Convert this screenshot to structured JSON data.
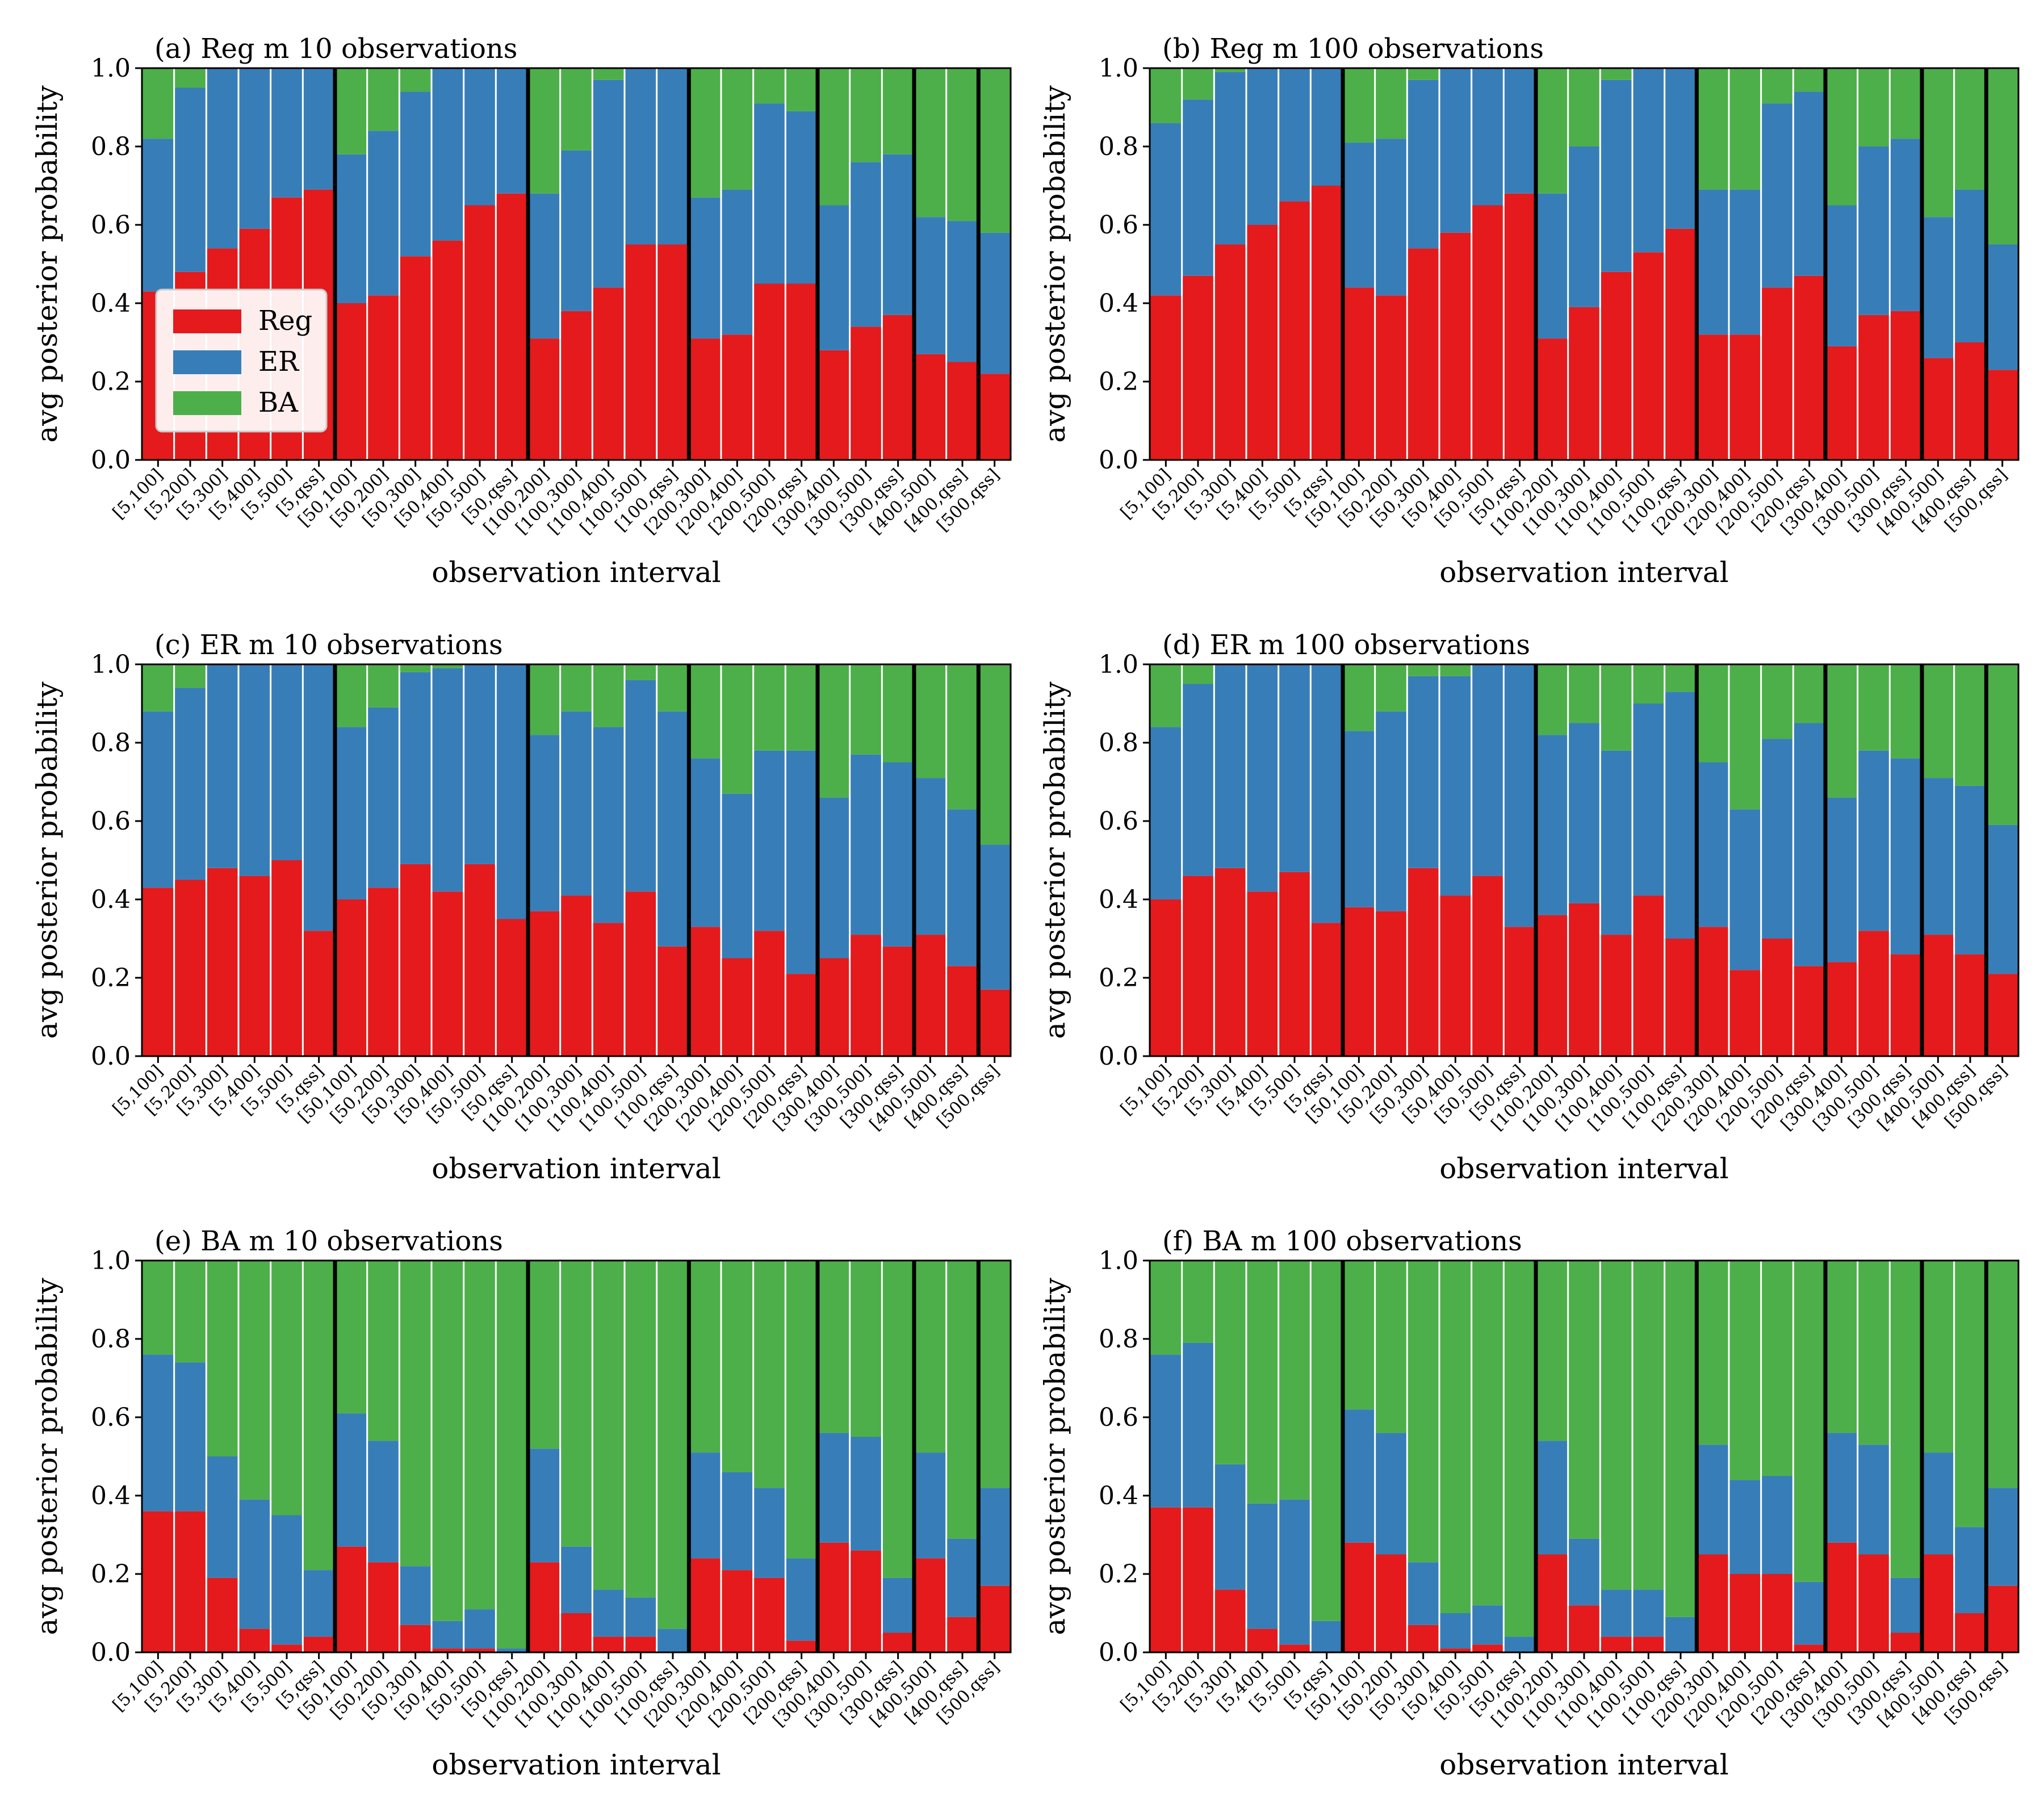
{
  "colors": {
    "Reg": "#e41a1c",
    "ER": "#377eb8",
    "BA": "#4daf4a",
    "separator_major": "#000000",
    "separator_minor": "#ffffff"
  },
  "legend": {
    "placement": "center-left",
    "panel": 0,
    "entries": [
      "Reg",
      "ER",
      "BA"
    ]
  },
  "chart_data": [
    {
      "type": "bar",
      "stacked": true,
      "title": "(a) Reg m 10 observations",
      "xlabel": "observation interval",
      "ylabel": "avg posterior probability",
      "ylim": [
        0,
        1
      ],
      "yticks": [
        "0.0",
        "0.2",
        "0.4",
        "0.6",
        "0.8",
        "1.0"
      ],
      "categories": [
        "[5,100]",
        "[5,200]",
        "[5,300]",
        "[5,400]",
        "[5,500]",
        "[5,qss]",
        "[50,100]",
        "[50,200]",
        "[50,300]",
        "[50,400]",
        "[50,500]",
        "[50,qss]",
        "[100,200]",
        "[100,300]",
        "[100,400]",
        "[100,500]",
        "[100,qss]",
        "[200,300]",
        "[200,400]",
        "[200,500]",
        "[200,qss]",
        "[300,400]",
        "[300,500]",
        "[300,qss]",
        "[400,500]",
        "[400,qss]",
        "[500,qss]"
      ],
      "series": [
        {
          "name": "Reg",
          "values": [
            0.43,
            0.48,
            0.54,
            0.59,
            0.67,
            0.69,
            0.4,
            0.42,
            0.52,
            0.56,
            0.65,
            0.68,
            0.31,
            0.38,
            0.44,
            0.55,
            0.55,
            0.31,
            0.32,
            0.45,
            0.45,
            0.28,
            0.34,
            0.37,
            0.27,
            0.25,
            0.22
          ]
        },
        {
          "name": "ER",
          "values": [
            0.39,
            0.47,
            0.46,
            0.41,
            0.33,
            0.31,
            0.38,
            0.42,
            0.42,
            0.44,
            0.35,
            0.32,
            0.37,
            0.41,
            0.53,
            0.45,
            0.45,
            0.36,
            0.37,
            0.46,
            0.44,
            0.37,
            0.42,
            0.41,
            0.35,
            0.36,
            0.36
          ]
        },
        {
          "name": "BA",
          "values": [
            0.18,
            0.05,
            0.0,
            0.0,
            0.0,
            0.0,
            0.22,
            0.16,
            0.06,
            0.0,
            0.0,
            0.0,
            0.32,
            0.21,
            0.03,
            0.0,
            0.0,
            0.33,
            0.31,
            0.09,
            0.11,
            0.35,
            0.24,
            0.22,
            0.38,
            0.39,
            0.42
          ]
        }
      ],
      "group_sizes": [
        6,
        6,
        5,
        4,
        3,
        2,
        1
      ]
    },
    {
      "type": "bar",
      "stacked": true,
      "title": "(b) Reg m 100 observations",
      "xlabel": "observation interval",
      "ylabel": "avg posterior probability",
      "ylim": [
        0,
        1
      ],
      "yticks": [
        "0.0",
        "0.2",
        "0.4",
        "0.6",
        "0.8",
        "1.0"
      ],
      "categories": [
        "[5,100]",
        "[5,200]",
        "[5,300]",
        "[5,400]",
        "[5,500]",
        "[5,qss]",
        "[50,100]",
        "[50,200]",
        "[50,300]",
        "[50,400]",
        "[50,500]",
        "[50,qss]",
        "[100,200]",
        "[100,300]",
        "[100,400]",
        "[100,500]",
        "[100,qss]",
        "[200,300]",
        "[200,400]",
        "[200,500]",
        "[200,qss]",
        "[300,400]",
        "[300,500]",
        "[300,qss]",
        "[400,500]",
        "[400,qss]",
        "[500,qss]"
      ],
      "series": [
        {
          "name": "Reg",
          "values": [
            0.42,
            0.47,
            0.55,
            0.6,
            0.66,
            0.7,
            0.44,
            0.42,
            0.54,
            0.58,
            0.65,
            0.68,
            0.31,
            0.39,
            0.48,
            0.53,
            0.59,
            0.32,
            0.32,
            0.44,
            0.47,
            0.29,
            0.37,
            0.38,
            0.26,
            0.3,
            0.23
          ]
        },
        {
          "name": "ER",
          "values": [
            0.44,
            0.45,
            0.44,
            0.4,
            0.34,
            0.3,
            0.37,
            0.4,
            0.43,
            0.42,
            0.35,
            0.32,
            0.37,
            0.41,
            0.49,
            0.47,
            0.41,
            0.37,
            0.37,
            0.47,
            0.47,
            0.36,
            0.43,
            0.44,
            0.36,
            0.39,
            0.32
          ]
        },
        {
          "name": "BA",
          "values": [
            0.14,
            0.08,
            0.01,
            0.0,
            0.0,
            0.0,
            0.19,
            0.18,
            0.03,
            0.0,
            0.0,
            0.0,
            0.32,
            0.2,
            0.03,
            0.0,
            0.0,
            0.31,
            0.31,
            0.09,
            0.06,
            0.35,
            0.2,
            0.18,
            0.38,
            0.31,
            0.45
          ]
        }
      ],
      "group_sizes": [
        6,
        6,
        5,
        4,
        3,
        2,
        1
      ]
    },
    {
      "type": "bar",
      "stacked": true,
      "title": "(c) ER m 10 observations",
      "xlabel": "observation interval",
      "ylabel": "avg posterior probability",
      "ylim": [
        0,
        1
      ],
      "yticks": [
        "0.0",
        "0.2",
        "0.4",
        "0.6",
        "0.8",
        "1.0"
      ],
      "categories": [
        "[5,100]",
        "[5,200]",
        "[5,300]",
        "[5,400]",
        "[5,500]",
        "[5,qss]",
        "[50,100]",
        "[50,200]",
        "[50,300]",
        "[50,400]",
        "[50,500]",
        "[50,qss]",
        "[100,200]",
        "[100,300]",
        "[100,400]",
        "[100,500]",
        "[100,qss]",
        "[200,300]",
        "[200,400]",
        "[200,500]",
        "[200,qss]",
        "[300,400]",
        "[300,500]",
        "[300,qss]",
        "[400,500]",
        "[400,qss]",
        "[500,qss]"
      ],
      "series": [
        {
          "name": "Reg",
          "values": [
            0.43,
            0.45,
            0.48,
            0.46,
            0.5,
            0.32,
            0.4,
            0.43,
            0.49,
            0.42,
            0.49,
            0.35,
            0.37,
            0.41,
            0.34,
            0.42,
            0.28,
            0.33,
            0.25,
            0.32,
            0.21,
            0.25,
            0.31,
            0.28,
            0.31,
            0.23,
            0.17
          ]
        },
        {
          "name": "ER",
          "values": [
            0.45,
            0.49,
            0.52,
            0.54,
            0.5,
            0.68,
            0.44,
            0.46,
            0.49,
            0.57,
            0.51,
            0.65,
            0.45,
            0.47,
            0.5,
            0.54,
            0.6,
            0.43,
            0.42,
            0.46,
            0.57,
            0.41,
            0.46,
            0.47,
            0.4,
            0.4,
            0.37
          ]
        },
        {
          "name": "BA",
          "values": [
            0.12,
            0.06,
            0.0,
            0.0,
            0.0,
            0.0,
            0.16,
            0.11,
            0.02,
            0.01,
            0.0,
            0.0,
            0.18,
            0.12,
            0.16,
            0.04,
            0.12,
            0.24,
            0.33,
            0.22,
            0.22,
            0.34,
            0.23,
            0.25,
            0.29,
            0.37,
            0.46
          ]
        }
      ],
      "group_sizes": [
        6,
        6,
        5,
        4,
        3,
        2,
        1
      ]
    },
    {
      "type": "bar",
      "stacked": true,
      "title": "(d) ER m 100 observations",
      "xlabel": "observation interval",
      "ylabel": "avg posterior probability",
      "ylim": [
        0,
        1
      ],
      "yticks": [
        "0.0",
        "0.2",
        "0.4",
        "0.6",
        "0.8",
        "1.0"
      ],
      "categories": [
        "[5,100]",
        "[5,200]",
        "[5,300]",
        "[5,400]",
        "[5,500]",
        "[5,qss]",
        "[50,100]",
        "[50,200]",
        "[50,300]",
        "[50,400]",
        "[50,500]",
        "[50,qss]",
        "[100,200]",
        "[100,300]",
        "[100,400]",
        "[100,500]",
        "[100,qss]",
        "[200,300]",
        "[200,400]",
        "[200,500]",
        "[200,qss]",
        "[300,400]",
        "[300,500]",
        "[300,qss]",
        "[400,500]",
        "[400,qss]",
        "[500,qss]"
      ],
      "series": [
        {
          "name": "Reg",
          "values": [
            0.4,
            0.46,
            0.48,
            0.42,
            0.47,
            0.34,
            0.38,
            0.37,
            0.48,
            0.41,
            0.46,
            0.33,
            0.36,
            0.39,
            0.31,
            0.41,
            0.3,
            0.33,
            0.22,
            0.3,
            0.23,
            0.24,
            0.32,
            0.26,
            0.31,
            0.26,
            0.21
          ]
        },
        {
          "name": "ER",
          "values": [
            0.44,
            0.49,
            0.52,
            0.58,
            0.53,
            0.66,
            0.45,
            0.51,
            0.49,
            0.56,
            0.54,
            0.67,
            0.46,
            0.46,
            0.47,
            0.49,
            0.63,
            0.42,
            0.41,
            0.51,
            0.62,
            0.42,
            0.46,
            0.5,
            0.4,
            0.43,
            0.38
          ]
        },
        {
          "name": "BA",
          "values": [
            0.16,
            0.05,
            0.0,
            0.0,
            0.0,
            0.0,
            0.17,
            0.12,
            0.03,
            0.03,
            0.0,
            0.0,
            0.18,
            0.15,
            0.22,
            0.1,
            0.07,
            0.25,
            0.37,
            0.19,
            0.15,
            0.34,
            0.22,
            0.24,
            0.29,
            0.31,
            0.41
          ]
        }
      ],
      "group_sizes": [
        6,
        6,
        5,
        4,
        3,
        2,
        1
      ]
    },
    {
      "type": "bar",
      "stacked": true,
      "title": "(e) BA m 10 observations",
      "xlabel": "observation interval",
      "ylabel": "avg posterior probability",
      "ylim": [
        0,
        1
      ],
      "yticks": [
        "0.0",
        "0.2",
        "0.4",
        "0.6",
        "0.8",
        "1.0"
      ],
      "categories": [
        "[5,100]",
        "[5,200]",
        "[5,300]",
        "[5,400]",
        "[5,500]",
        "[5,qss]",
        "[50,100]",
        "[50,200]",
        "[50,300]",
        "[50,400]",
        "[50,500]",
        "[50,qss]",
        "[100,200]",
        "[100,300]",
        "[100,400]",
        "[100,500]",
        "[100,qss]",
        "[200,300]",
        "[200,400]",
        "[200,500]",
        "[200,qss]",
        "[300,400]",
        "[300,500]",
        "[300,qss]",
        "[400,500]",
        "[400,qss]",
        "[500,qss]"
      ],
      "series": [
        {
          "name": "Reg",
          "values": [
            0.36,
            0.36,
            0.19,
            0.06,
            0.02,
            0.04,
            0.27,
            0.23,
            0.07,
            0.01,
            0.01,
            0.0,
            0.23,
            0.1,
            0.04,
            0.04,
            0.0,
            0.24,
            0.21,
            0.19,
            0.03,
            0.28,
            0.26,
            0.05,
            0.24,
            0.09,
            0.17
          ]
        },
        {
          "name": "ER",
          "values": [
            0.4,
            0.38,
            0.31,
            0.33,
            0.33,
            0.17,
            0.34,
            0.31,
            0.15,
            0.07,
            0.1,
            0.01,
            0.29,
            0.17,
            0.12,
            0.1,
            0.06,
            0.27,
            0.25,
            0.23,
            0.21,
            0.28,
            0.29,
            0.14,
            0.27,
            0.2,
            0.25
          ]
        },
        {
          "name": "BA",
          "values": [
            0.24,
            0.26,
            0.5,
            0.61,
            0.65,
            0.79,
            0.39,
            0.46,
            0.78,
            0.92,
            0.89,
            0.99,
            0.48,
            0.73,
            0.84,
            0.86,
            0.94,
            0.49,
            0.54,
            0.58,
            0.76,
            0.44,
            0.45,
            0.81,
            0.49,
            0.71,
            0.58
          ]
        }
      ],
      "group_sizes": [
        6,
        6,
        5,
        4,
        3,
        2,
        1
      ]
    },
    {
      "type": "bar",
      "stacked": true,
      "title": "(f) BA m 100 observations",
      "xlabel": "observation interval",
      "ylabel": "avg posterior probability",
      "ylim": [
        0,
        1
      ],
      "yticks": [
        "0.0",
        "0.2",
        "0.4",
        "0.6",
        "0.8",
        "1.0"
      ],
      "categories": [
        "[5,100]",
        "[5,200]",
        "[5,300]",
        "[5,400]",
        "[5,500]",
        "[5,qss]",
        "[50,100]",
        "[50,200]",
        "[50,300]",
        "[50,400]",
        "[50,500]",
        "[50,qss]",
        "[100,200]",
        "[100,300]",
        "[100,400]",
        "[100,500]",
        "[100,qss]",
        "[200,300]",
        "[200,400]",
        "[200,500]",
        "[200,qss]",
        "[300,400]",
        "[300,500]",
        "[300,qss]",
        "[400,500]",
        "[400,qss]",
        "[500,qss]"
      ],
      "series": [
        {
          "name": "Reg",
          "values": [
            0.37,
            0.37,
            0.16,
            0.06,
            0.02,
            0.0,
            0.28,
            0.25,
            0.07,
            0.01,
            0.02,
            0.0,
            0.25,
            0.12,
            0.04,
            0.04,
            0.0,
            0.25,
            0.2,
            0.2,
            0.02,
            0.28,
            0.25,
            0.05,
            0.25,
            0.1,
            0.17
          ]
        },
        {
          "name": "ER",
          "values": [
            0.39,
            0.42,
            0.32,
            0.32,
            0.37,
            0.08,
            0.34,
            0.31,
            0.16,
            0.09,
            0.1,
            0.04,
            0.29,
            0.17,
            0.12,
            0.12,
            0.09,
            0.28,
            0.24,
            0.25,
            0.16,
            0.28,
            0.28,
            0.14,
            0.26,
            0.22,
            0.25
          ]
        },
        {
          "name": "BA",
          "values": [
            0.24,
            0.21,
            0.52,
            0.62,
            0.61,
            0.92,
            0.38,
            0.44,
            0.77,
            0.9,
            0.88,
            0.96,
            0.46,
            0.71,
            0.84,
            0.84,
            0.91,
            0.47,
            0.56,
            0.55,
            0.82,
            0.44,
            0.47,
            0.81,
            0.49,
            0.68,
            0.58
          ]
        }
      ],
      "group_sizes": [
        6,
        6,
        5,
        4,
        3,
        2,
        1
      ]
    }
  ]
}
